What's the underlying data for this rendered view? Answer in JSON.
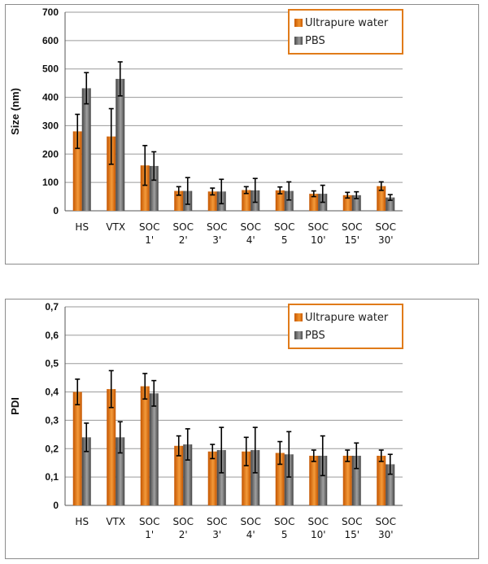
{
  "colors": {
    "ultrapure": "#e8801f",
    "pbs": "#6e6e6e",
    "legend_border": "#e07b1a",
    "grid": "#9a9a9a"
  },
  "chart_data": [
    {
      "type": "bar",
      "ylabel": "Size (nm)",
      "ylim": [
        0,
        700
      ],
      "yticks": [
        "0",
        "100",
        "200",
        "300",
        "400",
        "500",
        "600",
        "700"
      ],
      "ytick_values": [
        0,
        100,
        200,
        300,
        400,
        500,
        600,
        700
      ],
      "categories": [
        [
          "HS"
        ],
        [
          "VTX"
        ],
        [
          "SOC",
          "1'"
        ],
        [
          "SOC",
          "2'"
        ],
        [
          "SOC",
          "3'"
        ],
        [
          "SOC",
          "4'"
        ],
        [
          "SOC",
          "5"
        ],
        [
          "SOC",
          "10'"
        ],
        [
          "SOC",
          "15'"
        ],
        [
          "SOC",
          "30'"
        ]
      ],
      "legend": [
        "Ultrapure water",
        "PBS"
      ],
      "series": [
        {
          "name": "Ultrapure water",
          "values": [
            280,
            262,
            160,
            70,
            68,
            73,
            72,
            60,
            55,
            87
          ],
          "errors": [
            60,
            98,
            70,
            15,
            12,
            12,
            12,
            10,
            10,
            15
          ]
        },
        {
          "name": "PBS",
          "values": [
            432,
            465,
            158,
            70,
            68,
            72,
            70,
            60,
            55,
            47
          ],
          "errors": [
            55,
            60,
            50,
            47,
            43,
            42,
            32,
            30,
            12,
            10
          ]
        }
      ]
    },
    {
      "type": "bar",
      "ylabel": "PDI",
      "ylim": [
        0,
        0.7
      ],
      "yticks": [
        "0",
        "0,1",
        "0,2",
        "0,3",
        "0,4",
        "0,5",
        "0,6",
        "0,7"
      ],
      "ytick_values": [
        0,
        0.1,
        0.2,
        0.3,
        0.4,
        0.5,
        0.6,
        0.7
      ],
      "categories": [
        [
          "HS"
        ],
        [
          "VTX"
        ],
        [
          "SOC",
          "1'"
        ],
        [
          "SOC",
          "2'"
        ],
        [
          "SOC",
          "3'"
        ],
        [
          "SOC",
          "4'"
        ],
        [
          "SOC",
          "5"
        ],
        [
          "SOC",
          "10'"
        ],
        [
          "SOC",
          "15'"
        ],
        [
          "SOC",
          "30'"
        ]
      ],
      "legend": [
        "Ultrapure water",
        "PBS"
      ],
      "series": [
        {
          "name": "Ultrapure water",
          "values": [
            0.4,
            0.41,
            0.42,
            0.21,
            0.19,
            0.19,
            0.185,
            0.175,
            0.175,
            0.175
          ],
          "errors": [
            0.045,
            0.065,
            0.045,
            0.035,
            0.025,
            0.05,
            0.04,
            0.02,
            0.02,
            0.02
          ]
        },
        {
          "name": "PBS",
          "values": [
            0.24,
            0.24,
            0.395,
            0.215,
            0.195,
            0.195,
            0.18,
            0.175,
            0.175,
            0.145
          ],
          "errors": [
            0.05,
            0.055,
            0.045,
            0.055,
            0.08,
            0.08,
            0.08,
            0.07,
            0.045,
            0.035
          ]
        }
      ]
    }
  ]
}
